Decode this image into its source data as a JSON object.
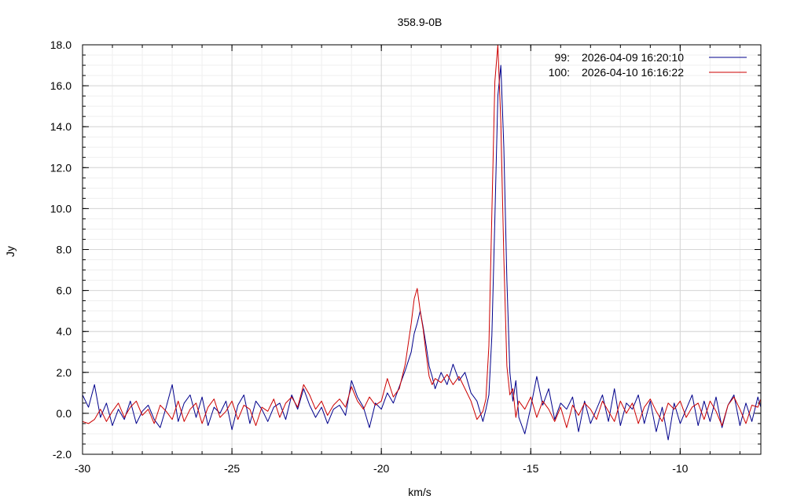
{
  "chart_data": {
    "type": "line",
    "title": "358.9-0B",
    "xlabel": "km/s",
    "ylabel": "Jy",
    "xlim": [
      -30,
      -7.3
    ],
    "ylim": [
      -2.0,
      18.0
    ],
    "x_ticks": [
      -30,
      -25,
      -20,
      -15,
      -10
    ],
    "x_tick_labels": [
      "-30",
      "-25",
      "-20",
      "-15",
      "-10"
    ],
    "y_ticks": [
      -2,
      0,
      2,
      4,
      6,
      8,
      10,
      12,
      14,
      16,
      18
    ],
    "y_tick_labels": [
      "-2.0",
      "0.0",
      "2.0",
      "4.0",
      "6.0",
      "8.0",
      "10.0",
      "12.0",
      "14.0",
      "16.0",
      "18.0"
    ],
    "grid": true,
    "legend_position": "top-right",
    "series": [
      {
        "name": "2026-04-09 16:20:10",
        "number": "99:",
        "color": "#00008b",
        "x": [
          -30.0,
          -29.8,
          -29.6,
          -29.4,
          -29.2,
          -29.0,
          -28.8,
          -28.6,
          -28.4,
          -28.2,
          -28.0,
          -27.8,
          -27.6,
          -27.4,
          -27.2,
          -27.0,
          -26.8,
          -26.6,
          -26.4,
          -26.2,
          -26.0,
          -25.8,
          -25.6,
          -25.4,
          -25.2,
          -25.0,
          -24.8,
          -24.6,
          -24.4,
          -24.2,
          -24.0,
          -23.8,
          -23.6,
          -23.4,
          -23.2,
          -23.0,
          -22.8,
          -22.6,
          -22.4,
          -22.2,
          -22.0,
          -21.8,
          -21.6,
          -21.4,
          -21.2,
          -21.0,
          -20.8,
          -20.6,
          -20.4,
          -20.2,
          -20.0,
          -19.8,
          -19.6,
          -19.4,
          -19.2,
          -19.0,
          -18.9,
          -18.8,
          -18.7,
          -18.6,
          -18.5,
          -18.4,
          -18.3,
          -18.2,
          -18.0,
          -17.8,
          -17.6,
          -17.4,
          -17.2,
          -17.0,
          -16.8,
          -16.6,
          -16.5,
          -16.4,
          -16.3,
          -16.2,
          -16.1,
          -16.0,
          -15.9,
          -15.8,
          -15.7,
          -15.6,
          -15.5,
          -15.4,
          -15.2,
          -15.0,
          -14.8,
          -14.6,
          -14.4,
          -14.2,
          -14.0,
          -13.8,
          -13.6,
          -13.4,
          -13.2,
          -13.0,
          -12.8,
          -12.6,
          -12.4,
          -12.2,
          -12.0,
          -11.8,
          -11.6,
          -11.4,
          -11.2,
          -11.0,
          -10.8,
          -10.6,
          -10.4,
          -10.2,
          -10.0,
          -9.8,
          -9.6,
          -9.4,
          -9.2,
          -9.0,
          -8.8,
          -8.6,
          -8.4,
          -8.2,
          -8.0,
          -7.8,
          -7.6,
          -7.4,
          -7.3
        ],
        "y": [
          0.9,
          0.3,
          1.4,
          -0.2,
          0.5,
          -0.6,
          0.2,
          -0.3,
          0.6,
          -0.5,
          0.1,
          0.4,
          -0.3,
          -0.7,
          0.3,
          1.4,
          -0.4,
          0.5,
          0.9,
          -0.2,
          0.8,
          -0.6,
          0.3,
          0.0,
          0.6,
          -0.8,
          0.4,
          0.9,
          -0.5,
          0.6,
          0.2,
          -0.4,
          0.3,
          0.5,
          -0.3,
          0.9,
          0.2,
          1.2,
          0.4,
          -0.2,
          0.3,
          -0.5,
          0.2,
          0.4,
          -0.1,
          1.6,
          0.8,
          0.3,
          -0.7,
          0.5,
          0.2,
          1.0,
          0.5,
          1.3,
          2.1,
          3.0,
          3.9,
          4.4,
          5.0,
          4.2,
          3.3,
          2.3,
          1.8,
          1.2,
          2.0,
          1.4,
          2.4,
          1.6,
          2.0,
          1.0,
          0.6,
          -0.4,
          0.2,
          0.9,
          3.8,
          9.5,
          15.5,
          17.0,
          13.0,
          6.5,
          2.0,
          0.6,
          1.6,
          -0.2,
          -1.0,
          0.3,
          1.8,
          0.4,
          1.2,
          -0.3,
          0.5,
          0.2,
          0.8,
          -0.9,
          0.6,
          -0.5,
          0.2,
          0.9,
          -0.4,
          1.2,
          -0.6,
          0.5,
          0.2,
          0.9,
          -0.5,
          0.6,
          -0.9,
          0.3,
          -1.3,
          0.5,
          -0.5,
          0.2,
          0.9,
          -0.6,
          0.6,
          -0.4,
          0.8,
          -0.7,
          0.4,
          0.9,
          -0.6,
          0.5,
          -0.4,
          0.8,
          0.3
        ]
      },
      {
        "name": "2026-04-10 16:16:22",
        "number": "100:",
        "color": "#cc0000",
        "x": [
          -30.0,
          -29.8,
          -29.6,
          -29.4,
          -29.2,
          -29.0,
          -28.8,
          -28.6,
          -28.4,
          -28.2,
          -28.0,
          -27.8,
          -27.6,
          -27.4,
          -27.2,
          -27.0,
          -26.8,
          -26.6,
          -26.4,
          -26.2,
          -26.0,
          -25.8,
          -25.6,
          -25.4,
          -25.2,
          -25.0,
          -24.8,
          -24.6,
          -24.4,
          -24.2,
          -24.0,
          -23.8,
          -23.6,
          -23.4,
          -23.2,
          -23.0,
          -22.8,
          -22.6,
          -22.4,
          -22.2,
          -22.0,
          -21.8,
          -21.6,
          -21.4,
          -21.2,
          -21.0,
          -20.8,
          -20.6,
          -20.4,
          -20.2,
          -20.0,
          -19.8,
          -19.6,
          -19.4,
          -19.2,
          -19.0,
          -18.9,
          -18.8,
          -18.7,
          -18.6,
          -18.5,
          -18.4,
          -18.3,
          -18.2,
          -18.0,
          -17.8,
          -17.6,
          -17.4,
          -17.2,
          -17.0,
          -16.8,
          -16.6,
          -16.5,
          -16.4,
          -16.3,
          -16.2,
          -16.1,
          -16.0,
          -15.9,
          -15.8,
          -15.7,
          -15.6,
          -15.5,
          -15.4,
          -15.2,
          -15.0,
          -14.8,
          -14.6,
          -14.4,
          -14.2,
          -14.0,
          -13.8,
          -13.6,
          -13.4,
          -13.2,
          -13.0,
          -12.8,
          -12.6,
          -12.4,
          -12.2,
          -12.0,
          -11.8,
          -11.6,
          -11.4,
          -11.2,
          -11.0,
          -10.8,
          -10.6,
          -10.4,
          -10.2,
          -10.0,
          -9.8,
          -9.6,
          -9.4,
          -9.2,
          -9.0,
          -8.8,
          -8.6,
          -8.4,
          -8.2,
          -8.0,
          -7.8,
          -7.6,
          -7.4,
          -7.3
        ],
        "y": [
          -0.4,
          -0.5,
          -0.3,
          0.2,
          -0.4,
          0.1,
          0.5,
          -0.2,
          0.3,
          0.6,
          -0.1,
          0.2,
          -0.5,
          0.4,
          0.1,
          -0.3,
          0.6,
          -0.4,
          0.2,
          0.5,
          -0.5,
          0.3,
          0.7,
          -0.2,
          0.1,
          0.6,
          -0.3,
          0.4,
          0.2,
          -0.6,
          0.3,
          0.1,
          0.7,
          -0.2,
          0.5,
          0.8,
          0.3,
          1.4,
          0.9,
          0.2,
          0.6,
          -0.1,
          0.4,
          0.7,
          0.3,
          1.3,
          0.6,
          0.2,
          0.8,
          0.4,
          0.6,
          1.7,
          0.8,
          1.2,
          2.4,
          4.4,
          5.6,
          6.1,
          5.0,
          4.1,
          2.9,
          1.8,
          1.4,
          1.7,
          1.5,
          1.9,
          1.4,
          1.8,
          1.2,
          0.6,
          -0.3,
          0.1,
          0.7,
          3.3,
          9.8,
          16.2,
          18.0,
          14.2,
          7.6,
          2.3,
          0.9,
          1.2,
          -0.2,
          0.6,
          0.2,
          0.8,
          -0.2,
          0.6,
          0.2,
          -0.4,
          0.3,
          -0.7,
          0.4,
          -0.1,
          0.5,
          0.2,
          -0.3,
          0.6,
          0.1,
          -0.4,
          0.6,
          0.0,
          0.5,
          -0.5,
          0.3,
          0.7,
          0.1,
          -0.4,
          0.5,
          0.2,
          0.6,
          -0.2,
          0.3,
          0.5,
          -0.3,
          0.6,
          0.1,
          -0.6,
          0.4,
          0.8,
          0.2,
          -0.5,
          0.4,
          0.3,
          0.7
        ]
      }
    ]
  }
}
